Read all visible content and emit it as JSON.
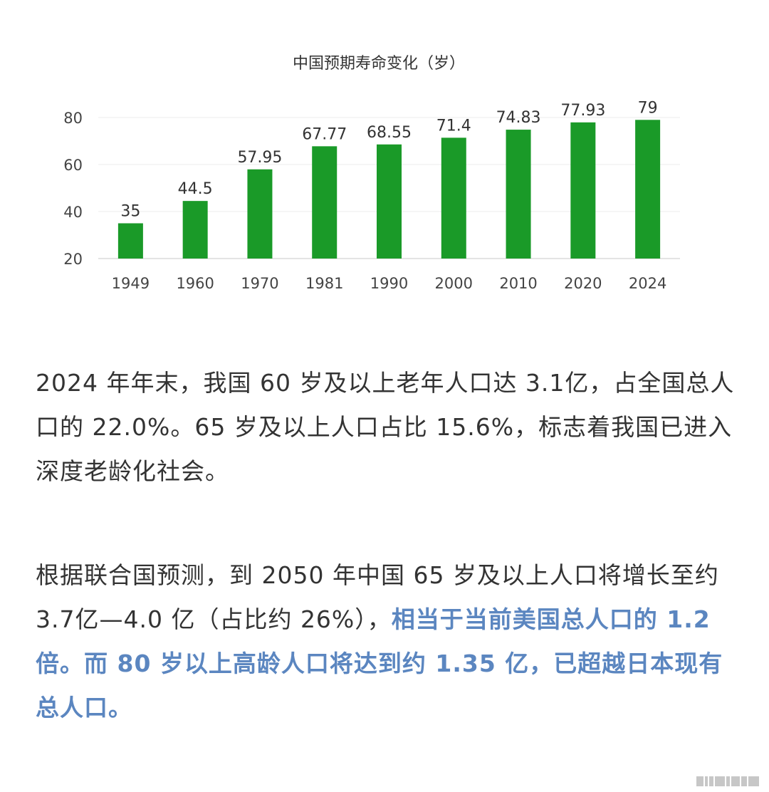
{
  "chart_data": {
    "type": "bar",
    "title": "中国预期寿命变化（岁）",
    "categories": [
      "1949",
      "1960",
      "1970",
      "1981",
      "1990",
      "2000",
      "2010",
      "2020",
      "2024"
    ],
    "values": [
      35,
      44.5,
      57.95,
      67.77,
      68.55,
      71.4,
      74.83,
      77.93,
      79
    ],
    "data_labels": [
      "35",
      "44.5",
      "57.95",
      "67.77",
      "68.55",
      "71.4",
      "74.83",
      "77.93",
      "79"
    ],
    "ylim": [
      20,
      80
    ],
    "yticks": [
      20,
      40,
      60,
      80
    ],
    "grid": true,
    "bar_color": "#1a9a28",
    "xlabel": "",
    "ylabel": ""
  },
  "text": {
    "para1": "2024 年年末，我国 60 岁及以上老年人口达 3.1亿，占全国总人口的 22.0%。65 岁及以上人口占比 15.6%，标志着我国已进入深度老龄化社会。",
    "para2_plain": "根据联合国预测，到 2050 年中国 65 岁及以上人口将增长至约 3.7亿—4.0 亿（占比约 26%），",
    "para2_highlight": "相当于当前美国总人口的 1.2 倍。而 80 岁以上高龄人口将达到约 1.35 亿，已超越日本现有总人口。"
  },
  "colors": {
    "highlight": "#5b86c0",
    "text": "#333333"
  }
}
